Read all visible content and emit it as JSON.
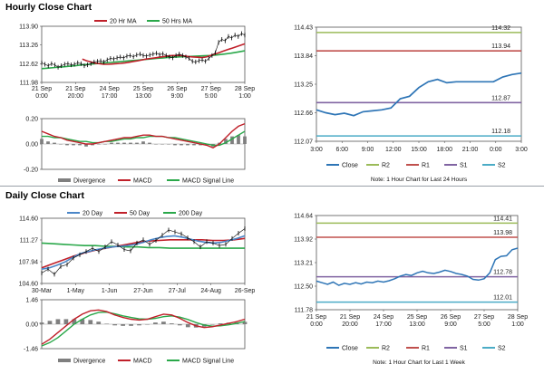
{
  "sections": {
    "hourly_title": "Hourly Close Chart",
    "daily_title": "Daily Close Chart"
  },
  "colors": {
    "price": "#000000",
    "ma_short": "#c0202a",
    "ma_long": "#2aa84a",
    "macd": "#c0202a",
    "signal": "#2aa84a",
    "divergence": "#7f7f7f",
    "close": "#2e75b6",
    "r2": "#9bbb59",
    "r1": "#c0504d",
    "s1": "#8064a2",
    "s2": "#4bacc6",
    "ma_mid": "#4a86c8"
  },
  "chart_data": [
    {
      "id": "hourly_price",
      "type": "line",
      "title": "Hourly Close Chart",
      "legend": [
        "20 Hr MA",
        "50 Hrs MA"
      ],
      "y_ticks": [
        "113.90",
        "113.26",
        "112.62",
        "111.98"
      ],
      "ylim": [
        111.98,
        113.9
      ],
      "x_ticks": [
        "21 Sep\n0:00",
        "21 Sep\n20:00",
        "24 Sep\n17:00",
        "25 Sep\n13:00",
        "26 Sep\n9:00",
        "27 Sep\n5:00",
        "28 Sep\n1:00"
      ],
      "series": [
        {
          "name": "Close",
          "values": [
            112.65,
            112.6,
            112.55,
            112.62,
            112.58,
            112.5,
            112.55,
            112.6,
            112.62,
            112.58,
            112.6,
            112.65,
            112.62,
            112.55,
            112.58,
            112.62,
            112.68,
            112.7,
            112.72,
            112.68,
            112.75,
            112.8,
            112.78,
            112.82,
            112.85,
            112.82,
            112.88,
            112.9,
            112.86,
            112.92,
            112.95,
            112.9,
            112.88,
            112.92,
            112.95,
            112.98,
            112.93,
            112.96,
            112.9,
            112.85,
            112.82,
            112.9,
            112.95,
            112.9,
            112.85,
            112.8,
            112.7,
            112.68,
            112.72,
            112.75,
            112.7,
            112.8,
            112.9,
            113.0,
            113.35,
            113.45,
            113.4,
            113.55,
            113.5,
            113.6,
            113.55,
            113.65,
            113.6
          ]
        },
        {
          "name": "20 Hr MA",
          "values": [
            112.78,
            112.72,
            112.68,
            112.64,
            112.62,
            112.6,
            112.6,
            112.61,
            112.62,
            112.63,
            112.65,
            112.67,
            112.7,
            112.72,
            112.75,
            112.78,
            112.8,
            112.82,
            112.84,
            112.86,
            112.88,
            112.9,
            112.9,
            112.9,
            112.88,
            112.86,
            112.85,
            112.84,
            112.83,
            112.85,
            112.9,
            112.95,
            113.0,
            113.05,
            113.1,
            113.15,
            113.2,
            113.25,
            113.3
          ]
        },
        {
          "name": "50 Hrs MA",
          "values": [
            112.45,
            112.47,
            112.49,
            112.51,
            112.53,
            112.55,
            112.58,
            112.6,
            112.62,
            112.64,
            112.66,
            112.68,
            112.7,
            112.72,
            112.74,
            112.76,
            112.78,
            112.8,
            112.82,
            112.84,
            112.85,
            112.86,
            112.87,
            112.88,
            112.89,
            112.9,
            112.92,
            112.95,
            112.98,
            113.02,
            113.06
          ]
        }
      ]
    },
    {
      "id": "hourly_macd",
      "type": "line",
      "legend": [
        "Divergence",
        "MACD",
        "MACD Signal Line"
      ],
      "y_ticks": [
        "0.20",
        "0.00",
        "-0.20"
      ],
      "ylim": [
        -0.2,
        0.2
      ],
      "series": [
        {
          "name": "MACD",
          "values": [
            0.1,
            0.08,
            0.06,
            0.05,
            0.03,
            0.02,
            0.01,
            0.0,
            0.0,
            0.01,
            0.02,
            0.03,
            0.04,
            0.05,
            0.05,
            0.06,
            0.07,
            0.07,
            0.06,
            0.06,
            0.05,
            0.04,
            0.03,
            0.02,
            0.01,
            0.0,
            -0.01,
            -0.03,
            0.0,
            0.05,
            0.1,
            0.14,
            0.16
          ]
        },
        {
          "name": "MACD Signal Line",
          "values": [
            0.06,
            0.06,
            0.05,
            0.05,
            0.04,
            0.03,
            0.02,
            0.02,
            0.01,
            0.01,
            0.02,
            0.02,
            0.03,
            0.04,
            0.04,
            0.05,
            0.05,
            0.06,
            0.06,
            0.06,
            0.05,
            0.05,
            0.04,
            0.03,
            0.02,
            0.01,
            0.0,
            -0.01,
            -0.01,
            0.01,
            0.04,
            0.07,
            0.1
          ]
        },
        {
          "name": "Divergence",
          "values": [
            0.04,
            0.02,
            0.01,
            0.0,
            -0.01,
            -0.01,
            -0.01,
            -0.02,
            -0.01,
            0.0,
            0.0,
            0.01,
            0.01,
            0.01,
            0.01,
            0.01,
            0.02,
            0.01,
            0.0,
            0.0,
            0.0,
            -0.01,
            -0.01,
            -0.01,
            -0.01,
            -0.01,
            -0.01,
            -0.02,
            0.01,
            0.04,
            0.06,
            0.07,
            0.06
          ]
        }
      ]
    },
    {
      "id": "hourly_levels",
      "type": "line",
      "y_ticks": [
        "114.43",
        "113.84",
        "113.25",
        "112.66",
        "112.07"
      ],
      "ylim": [
        112.07,
        114.43
      ],
      "x_ticks": [
        "3:00",
        "6:00",
        "9:00",
        "12:00",
        "15:00",
        "18:00",
        "21:00",
        "0:00",
        "3:00"
      ],
      "levels": [
        {
          "name": "R2",
          "value": 114.32,
          "label": "114.32"
        },
        {
          "name": "R1",
          "value": 113.94,
          "label": "113.94"
        },
        {
          "name": "S1",
          "value": 112.87,
          "label": "112.87"
        },
        {
          "name": "S2",
          "value": 112.18,
          "label": "112.18"
        }
      ],
      "series": [
        {
          "name": "Close",
          "values": [
            112.72,
            112.66,
            112.62,
            112.65,
            112.6,
            112.68,
            112.7,
            112.72,
            112.76,
            112.95,
            113.0,
            113.18,
            113.3,
            113.35,
            113.28,
            113.3,
            113.3,
            113.3,
            113.3,
            113.3,
            113.4,
            113.45,
            113.48
          ]
        }
      ],
      "legend": [
        "Close",
        "R2",
        "R1",
        "S1",
        "S2"
      ],
      "note": "Note: 1 Hour Chart for Last 24 Hours"
    },
    {
      "id": "daily_price",
      "type": "line",
      "title": "Daily Close Chart",
      "legend": [
        "20 Day",
        "50 Day",
        "200 Day"
      ],
      "y_ticks": [
        "114.60",
        "111.27",
        "107.94",
        "104.60"
      ],
      "ylim": [
        104.6,
        114.6
      ],
      "x_ticks": [
        "30-Mar",
        "1-May",
        "1-Jun",
        "27-Jun",
        "27-Jul",
        "24-Aug",
        "26-Sep"
      ],
      "series": [
        {
          "name": "Close",
          "values": [
            106.2,
            106.8,
            106.0,
            107.2,
            107.5,
            108.5,
            109.0,
            109.5,
            110.0,
            109.5,
            110.2,
            111.0,
            110.5,
            109.8,
            109.6,
            110.8,
            111.3,
            110.6,
            111.2,
            112.0,
            112.8,
            112.5,
            112.2,
            111.6,
            111.0,
            110.2,
            111.0,
            110.8,
            110.4,
            110.6,
            111.5,
            112.3,
            113.0
          ]
        },
        {
          "name": "20 Day",
          "values": [
            106.8,
            107.0,
            107.4,
            107.9,
            108.6,
            109.2,
            109.5,
            109.8,
            110.0,
            110.2,
            110.3,
            110.4,
            110.6,
            110.9,
            111.3,
            111.6,
            111.8,
            111.9,
            111.7,
            111.4,
            111.1,
            110.9,
            110.8,
            110.9,
            111.2,
            111.5,
            111.9
          ]
        },
        {
          "name": "50 Day",
          "values": [
            107.0,
            107.6,
            108.2,
            108.8,
            109.3,
            109.7,
            110.0,
            110.3,
            110.6,
            110.9,
            111.1,
            111.2,
            111.3,
            111.3,
            111.3,
            111.3,
            111.2,
            111.2,
            111.3,
            111.5
          ]
        },
        {
          "name": "200 Day",
          "values": [
            110.8,
            110.7,
            110.6,
            110.5,
            110.4,
            110.4,
            110.3,
            110.3,
            110.2,
            110.2,
            110.1,
            110.1,
            110.0,
            110.0,
            110.0,
            110.0,
            110.0,
            110.0,
            110.0,
            110.0
          ]
        }
      ]
    },
    {
      "id": "daily_macd",
      "type": "line",
      "legend": [
        "Divergence",
        "MACD",
        "MACD Signal Line"
      ],
      "y_ticks": [
        "1.46",
        "0.00",
        "-1.46"
      ],
      "ylim": [
        -1.46,
        1.46
      ],
      "series": [
        {
          "name": "MACD",
          "values": [
            -1.2,
            -0.9,
            -0.5,
            -0.1,
            0.3,
            0.6,
            0.8,
            0.85,
            0.75,
            0.55,
            0.4,
            0.3,
            0.25,
            0.3,
            0.45,
            0.6,
            0.55,
            0.35,
            0.1,
            -0.1,
            -0.2,
            -0.15,
            -0.05,
            0.05,
            0.15,
            0.3
          ]
        },
        {
          "name": "MACD Signal Line",
          "values": [
            -1.3,
            -1.1,
            -0.8,
            -0.4,
            0.0,
            0.3,
            0.55,
            0.7,
            0.72,
            0.62,
            0.5,
            0.4,
            0.32,
            0.3,
            0.35,
            0.45,
            0.5,
            0.42,
            0.28,
            0.1,
            -0.05,
            -0.12,
            -0.1,
            -0.04,
            0.05,
            0.16
          ]
        },
        {
          "name": "Divergence",
          "values": [
            0.1,
            0.2,
            0.3,
            0.3,
            0.3,
            0.3,
            0.25,
            0.15,
            0.03,
            -0.07,
            -0.1,
            -0.1,
            -0.07,
            0.0,
            0.1,
            0.15,
            0.05,
            -0.07,
            -0.18,
            -0.2,
            -0.15,
            -0.03,
            0.05,
            0.09,
            0.1,
            0.14
          ]
        }
      ]
    },
    {
      "id": "daily_levels",
      "type": "line",
      "y_ticks": [
        "114.64",
        "113.92",
        "113.21",
        "112.50",
        "111.78"
      ],
      "ylim": [
        111.78,
        114.64
      ],
      "x_ticks": [
        "21 Sep\n0:00",
        "21 Sep\n20:00",
        "24 Sep\n17:00",
        "25 Sep\n13:00",
        "26 Sep\n9:00",
        "27 Sep\n5:00",
        "28 Sep\n1:00"
      ],
      "levels": [
        {
          "name": "R2",
          "value": 114.41,
          "label": "114.41"
        },
        {
          "name": "R1",
          "value": 113.98,
          "label": "113.98"
        },
        {
          "name": "S1",
          "value": 112.78,
          "label": "112.78"
        },
        {
          "name": "S2",
          "value": 112.01,
          "label": "112.01"
        }
      ],
      "series": [
        {
          "name": "Close",
          "values": [
            112.65,
            112.6,
            112.55,
            112.62,
            112.52,
            112.58,
            112.55,
            112.6,
            112.56,
            112.62,
            112.6,
            112.65,
            112.62,
            112.66,
            112.72,
            112.8,
            112.85,
            112.82,
            112.9,
            112.95,
            112.9,
            112.88,
            112.92,
            112.98,
            112.94,
            112.88,
            112.85,
            112.8,
            112.7,
            112.68,
            112.72,
            112.9,
            113.3,
            113.4,
            113.42,
            113.6,
            113.65
          ]
        }
      ],
      "legend": [
        "Close",
        "R2",
        "R1",
        "S1",
        "S2"
      ],
      "note": "Note: 1 Hour Chart for Last 1 Week"
    }
  ]
}
